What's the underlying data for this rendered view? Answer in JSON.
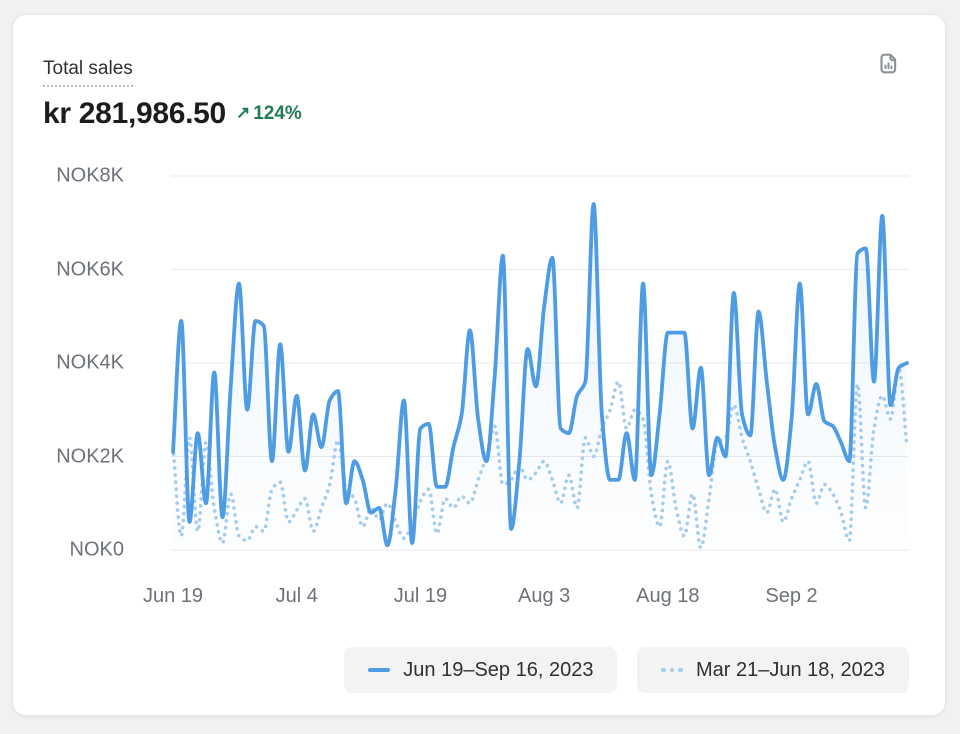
{
  "page": {
    "background_color": "#f1f1f2",
    "card_background": "#ffffff"
  },
  "card": {
    "title": "Total sales",
    "value": "kr 281,986.50",
    "change": {
      "arrow": "↗",
      "percent": "124%",
      "direction": "up",
      "color": "#1e7d55"
    }
  },
  "chart_data": {
    "type": "line",
    "title": "Total sales",
    "currency": "NOK",
    "ylim": [
      0,
      8000
    ],
    "grid": "horizontal",
    "legend_position": "bottom",
    "y_ticks": [
      "NOK8K",
      "NOK6K",
      "NOK4K",
      "NOK2K",
      "NOK0"
    ],
    "y_tick_values": [
      8000,
      6000,
      4000,
      2000,
      0
    ],
    "x_ticks": [
      "Jun 19",
      "Jul 4",
      "Jul 19",
      "Aug 3",
      "Aug 18",
      "Sep 2"
    ],
    "x_tick_days": [
      0,
      15,
      30,
      45,
      60,
      75
    ],
    "days_total": 90,
    "colors": {
      "grid_line": "#e9e9ec",
      "axis_text": "#6d717a",
      "area_fill_top": "rgba(78,156,227,0.10)",
      "area_fill_bottom": "rgba(78,156,227,0.01)"
    },
    "series": [
      {
        "name": "Jun 19–Sep 16, 2023",
        "style": "solid",
        "color": "#4E9CE4",
        "values": [
          2100,
          4900,
          600,
          2500,
          1000,
          3800,
          700,
          3500,
          5700,
          3000,
          4900,
          4800,
          1900,
          4400,
          2100,
          3300,
          1700,
          2900,
          2200,
          3200,
          3400,
          1000,
          1900,
          1500,
          800,
          900,
          100,
          1300,
          3200,
          150,
          2600,
          2700,
          1350,
          1350,
          2200,
          2900,
          4700,
          2800,
          1900,
          3700,
          6300,
          450,
          1900,
          4300,
          3500,
          5200,
          6250,
          2600,
          2500,
          3300,
          3600,
          7400,
          2900,
          1500,
          1500,
          2500,
          1500,
          5700,
          1600,
          2900,
          4650,
          4650,
          4650,
          2600,
          3900,
          1600,
          2400,
          2000,
          5500,
          2900,
          2450,
          5100,
          3600,
          2200,
          1500,
          2800,
          5700,
          2900,
          3550,
          2750,
          2650,
          2300,
          1900,
          6350,
          6450,
          3600,
          7150,
          3100,
          3900,
          4000
        ]
      },
      {
        "name": "Mar 21–Jun 18, 2023",
        "style": "dotted",
        "color": "#A6CBEC",
        "values": [
          2200,
          300,
          2400,
          400,
          2300,
          900,
          150,
          1200,
          300,
          200,
          500,
          400,
          1300,
          1450,
          600,
          850,
          1100,
          400,
          900,
          1400,
          2350,
          1300,
          1100,
          500,
          900,
          650,
          1000,
          600,
          250,
          550,
          1050,
          1300,
          350,
          1100,
          900,
          1150,
          1000,
          1500,
          2000,
          2650,
          1400,
          1500,
          1800,
          1500,
          1650,
          1900,
          1500,
          1000,
          1600,
          900,
          2400,
          2000,
          2600,
          3000,
          3600,
          2600,
          3000,
          2800,
          1200,
          500,
          1900,
          900,
          300,
          1200,
          50,
          1100,
          2300,
          2400,
          3100,
          2400,
          1900,
          1300,
          800,
          1300,
          600,
          1100,
          1500,
          1900,
          1000,
          1400,
          1200,
          800,
          200,
          3550,
          900,
          2600,
          3300,
          2800,
          3900,
          2200
        ]
      }
    ]
  }
}
